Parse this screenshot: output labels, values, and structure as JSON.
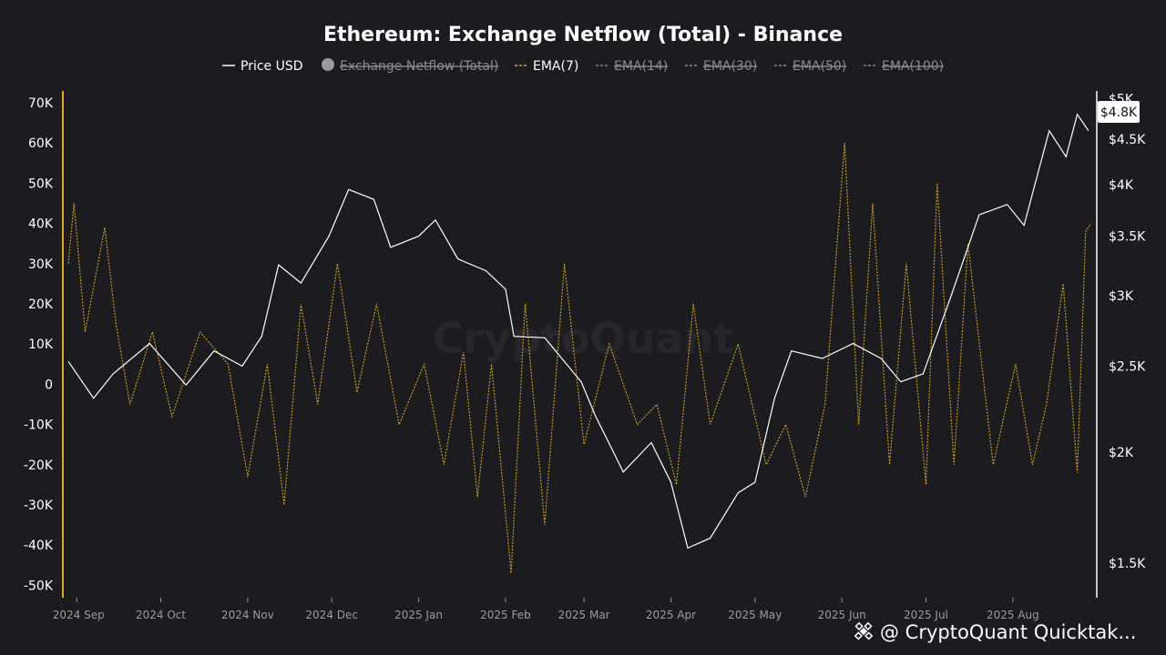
{
  "chart_data": {
    "type": "line",
    "title": "Ethereum: Exchange Netflow (Total) - Binance",
    "legend": {
      "placement": "top-center",
      "items": [
        {
          "label": "Price USD",
          "style": "solid",
          "color": "#ffffff",
          "active": true
        },
        {
          "label": "Exchange Netflow (Total)",
          "style": "dot",
          "color": "#9a9aa2",
          "active": false
        },
        {
          "label": "EMA(7)",
          "style": "dashed",
          "color": "#d9a21b",
          "active": true
        },
        {
          "label": "EMA(14)",
          "style": "dashed",
          "color": "#8a8a92",
          "active": false
        },
        {
          "label": "EMA(30)",
          "style": "dashed",
          "color": "#8a8a92",
          "active": false
        },
        {
          "label": "EMA(50)",
          "style": "dashed",
          "color": "#8a8a92",
          "active": false
        },
        {
          "label": "EMA(100)",
          "style": "dashed",
          "color": "#8a8a92",
          "active": false
        }
      ]
    },
    "x_ticks": [
      "2024 Sep",
      "2024 Oct",
      "2024 Nov",
      "2024 Dec",
      "2025 Jan",
      "2025 Feb",
      "2025 Mar",
      "2025 Apr",
      "2025 May",
      "2025 Jun",
      "2025 Jul",
      "2025 Aug"
    ],
    "x_range": [
      "2024-08-29",
      "2025-08-29"
    ],
    "y_left": {
      "ticks": [
        "70K",
        "60K",
        "50K",
        "40K",
        "30K",
        "20K",
        "10K",
        "0",
        "-10K",
        "-20K",
        "-30K",
        "-40K",
        "-50K"
      ],
      "range": [
        -52000,
        72000
      ]
    },
    "y_right": {
      "ticks": [
        "$5K",
        "$4.5K",
        "$4K",
        "$3.5K",
        "$3K",
        "$2.5K",
        "$2K",
        "$1.5K"
      ],
      "scale": "log",
      "last_price_label": "$4.8K"
    },
    "grid": false,
    "series": [
      {
        "name": "Price USD",
        "axis": "right",
        "color": "#ffffff",
        "x": [
          "2024-08-29",
          "2024-09-07",
          "2024-09-14",
          "2024-09-27",
          "2024-10-10",
          "2024-10-20",
          "2024-10-30",
          "2024-11-06",
          "2024-11-12",
          "2024-11-20",
          "2024-11-30",
          "2024-12-07",
          "2024-12-16",
          "2024-12-22",
          "2025-01-01",
          "2025-01-07",
          "2025-01-15",
          "2025-01-25",
          "2025-02-01",
          "2025-02-04",
          "2025-02-15",
          "2025-02-28",
          "2025-03-05",
          "2025-03-15",
          "2025-03-25",
          "2025-04-01",
          "2025-04-07",
          "2025-04-15",
          "2025-04-25",
          "2025-05-01",
          "2025-05-08",
          "2025-05-14",
          "2025-05-25",
          "2025-06-05",
          "2025-06-15",
          "2025-06-22",
          "2025-06-30",
          "2025-07-10",
          "2025-07-20",
          "2025-07-30",
          "2025-08-05",
          "2025-08-14",
          "2025-08-20",
          "2025-08-24",
          "2025-08-28"
        ],
        "values": [
          2530,
          2300,
          2450,
          2650,
          2380,
          2600,
          2500,
          2700,
          3250,
          3100,
          3500,
          3950,
          3850,
          3400,
          3500,
          3650,
          3300,
          3200,
          3050,
          2700,
          2690,
          2400,
          2200,
          1900,
          2050,
          1850,
          1560,
          1600,
          1800,
          1850,
          2300,
          2600,
          2550,
          2650,
          2550,
          2400,
          2450,
          3000,
          3700,
          3800,
          3600,
          4600,
          4300,
          4800,
          4600
        ]
      },
      {
        "name": "EMA(7)",
        "axis": "left",
        "color": "#d9a21b",
        "x": [
          "2024-08-29",
          "2024-08-31",
          "2024-09-04",
          "2024-09-11",
          "2024-09-15",
          "2024-09-20",
          "2024-09-28",
          "2024-10-05",
          "2024-10-15",
          "2024-10-25",
          "2024-11-01",
          "2024-11-08",
          "2024-11-14",
          "2024-11-20",
          "2024-11-26",
          "2024-12-03",
          "2024-12-10",
          "2024-12-17",
          "2024-12-25",
          "2025-01-03",
          "2025-01-10",
          "2025-01-17",
          "2025-01-22",
          "2025-01-27",
          "2025-02-03",
          "2025-02-08",
          "2025-02-15",
          "2025-02-22",
          "2025-03-01",
          "2025-03-10",
          "2025-03-20",
          "2025-03-27",
          "2025-04-03",
          "2025-04-09",
          "2025-04-15",
          "2025-04-25",
          "2025-05-05",
          "2025-05-12",
          "2025-05-19",
          "2025-05-26",
          "2025-06-02",
          "2025-06-07",
          "2025-06-12",
          "2025-06-18",
          "2025-06-24",
          "2025-07-01",
          "2025-07-05",
          "2025-07-11",
          "2025-07-16",
          "2025-07-25",
          "2025-08-02",
          "2025-08-08",
          "2025-08-13",
          "2025-08-19",
          "2025-08-24",
          "2025-08-27",
          "2025-08-29"
        ],
        "values": [
          30000,
          45000,
          13000,
          39000,
          15000,
          -5000,
          13000,
          -8000,
          13000,
          5000,
          -23000,
          5000,
          -30000,
          20000,
          -5000,
          30000,
          -2000,
          20000,
          -10000,
          5000,
          -20000,
          8000,
          -28000,
          5000,
          -47000,
          20000,
          -35000,
          30000,
          -15000,
          10000,
          -10000,
          -5000,
          -25000,
          20000,
          -10000,
          10000,
          -20000,
          -10000,
          -28000,
          -5000,
          60000,
          -10000,
          45000,
          -20000,
          30000,
          -25000,
          50000,
          -20000,
          35000,
          -20000,
          5000,
          -20000,
          -5000,
          25000,
          -22000,
          38000,
          40000
        ]
      }
    ],
    "watermark": "CryptoQuant",
    "footer_brand": "@ CryptoQuant Quicktak..."
  }
}
